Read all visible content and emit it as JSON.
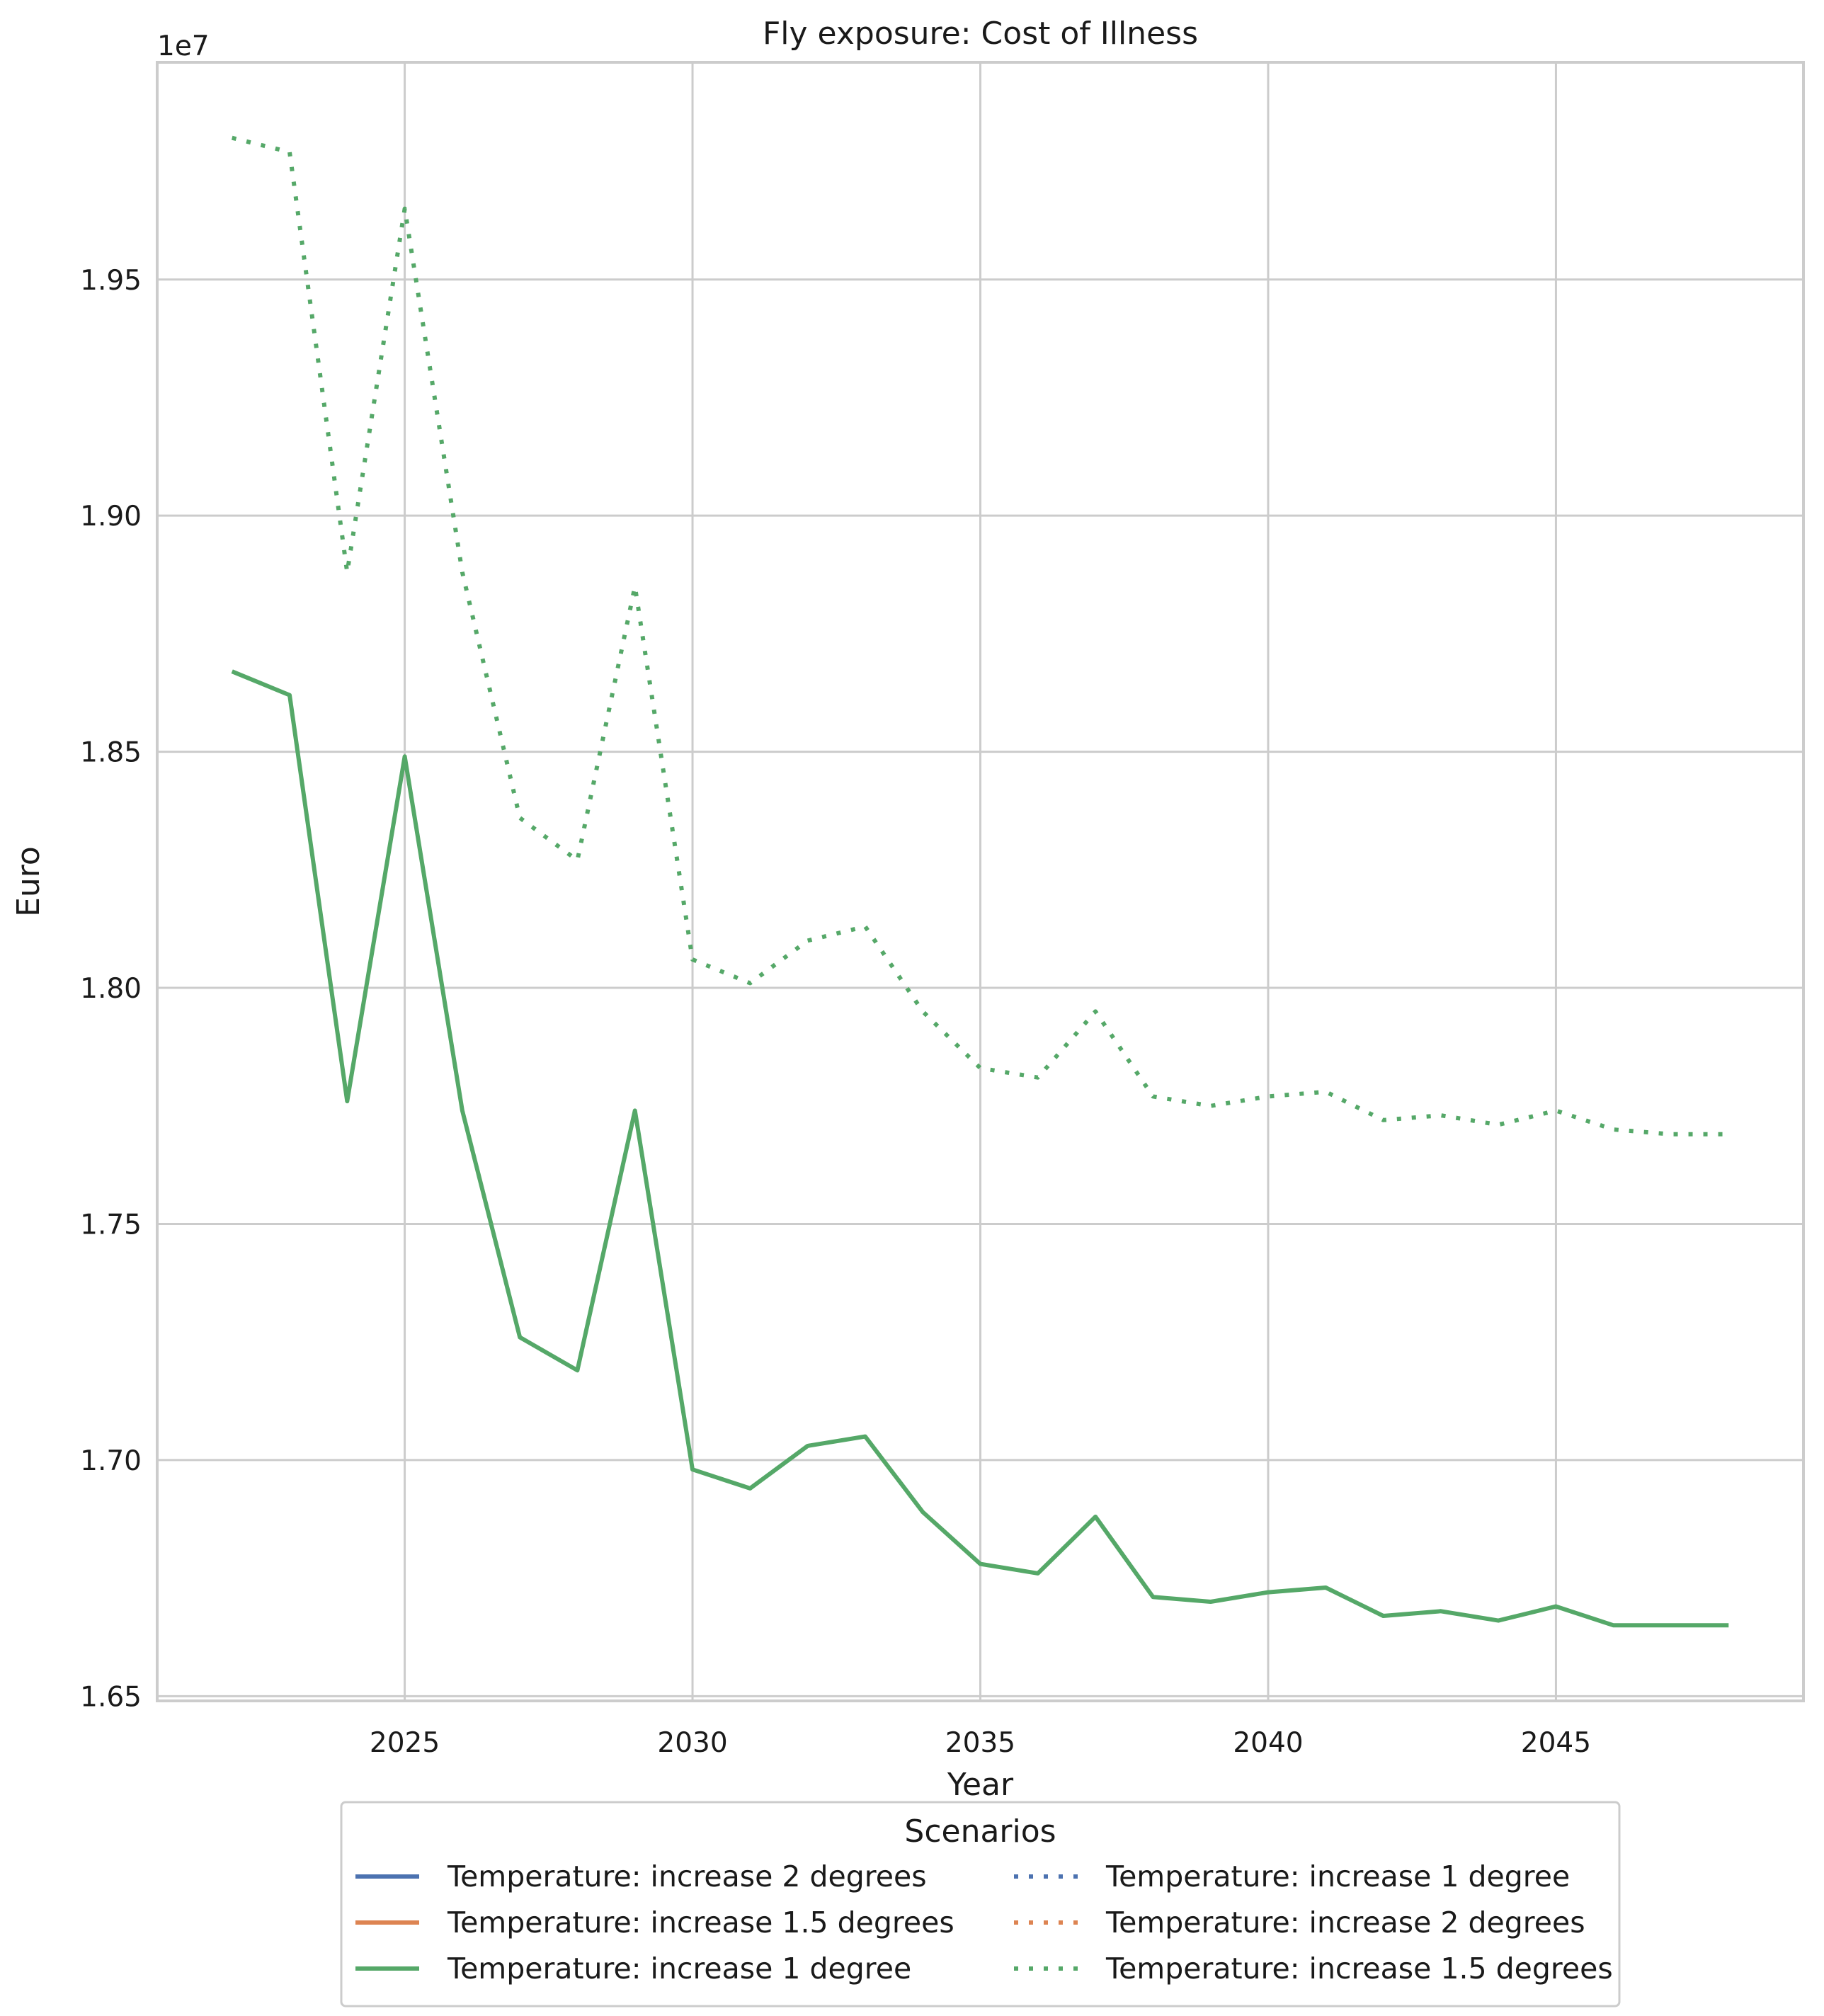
{
  "chart_data": {
    "type": "line",
    "title": "Fly exposure: Cost of Illness",
    "xlabel": "Year",
    "ylabel": "Euro",
    "y_offset_label": "1e7",
    "xlim": [
      2020.7,
      2049.3
    ],
    "ylim": [
      1.649,
      1.996
    ],
    "x_ticks": [
      2025,
      2030,
      2035,
      2040,
      2045
    ],
    "x_tick_labels": [
      "2025",
      "2030",
      "2035",
      "2040",
      "2045"
    ],
    "y_ticks": [
      1.65,
      1.7,
      1.75,
      1.8,
      1.85,
      1.9,
      1.95
    ],
    "y_tick_labels": [
      "1.65",
      "1.70",
      "1.75",
      "1.80",
      "1.85",
      "1.90",
      "1.95"
    ],
    "grid": true,
    "legend": {
      "title": "Scenarios",
      "placement": "below-center",
      "columns": 2,
      "entries": [
        {
          "label": "Temperature: increase 2 degrees",
          "color": "#4c72b0",
          "style": "solid"
        },
        {
          "label": "Temperature: increase 1.5 degrees",
          "color": "#dd8452",
          "style": "solid"
        },
        {
          "label": "Temperature: increase 1 degree",
          "color": "#55a868",
          "style": "solid"
        },
        {
          "label": "Temperature: increase 1 degree",
          "color": "#4c72b0",
          "style": "dotted"
        },
        {
          "label": "Temperature: increase 2 degrees",
          "color": "#dd8452",
          "style": "dotted"
        },
        {
          "label": "Temperature: increase 1.5 degrees",
          "color": "#55a868",
          "style": "dotted"
        }
      ]
    },
    "x": [
      2022,
      2023,
      2024,
      2025,
      2026,
      2027,
      2028,
      2029,
      2030,
      2031,
      2032,
      2033,
      2034,
      2035,
      2036,
      2037,
      2038,
      2039,
      2040,
      2041,
      2042,
      2043,
      2044,
      2045,
      2046,
      2047,
      2048
    ],
    "series": [
      {
        "style": "solid",
        "color": "#55a868",
        "values": [
          1.867,
          1.862,
          1.776,
          1.849,
          1.774,
          1.726,
          1.719,
          1.774,
          1.698,
          1.694,
          1.703,
          1.705,
          1.689,
          1.678,
          1.676,
          1.688,
          1.671,
          1.67,
          1.672,
          1.673,
          1.667,
          1.668,
          1.666,
          1.669,
          1.665,
          1.665,
          1.665
        ]
      },
      {
        "style": "dotted",
        "color": "#55a868",
        "values": [
          1.98,
          1.977,
          1.888,
          1.965,
          1.888,
          1.836,
          1.827,
          1.885,
          1.806,
          1.801,
          1.81,
          1.813,
          1.795,
          1.783,
          1.781,
          1.795,
          1.777,
          1.775,
          1.777,
          1.778,
          1.772,
          1.773,
          1.771,
          1.774,
          1.77,
          1.769,
          1.769
        ]
      }
    ]
  }
}
